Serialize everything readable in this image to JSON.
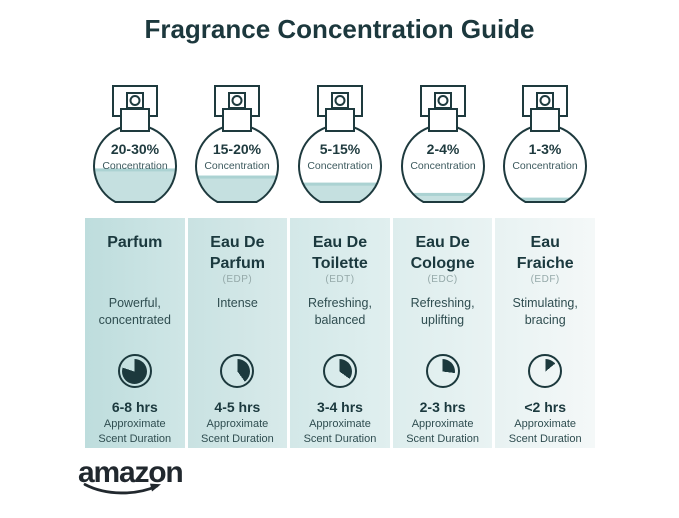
{
  "title": "Fragrance Concentration Guide",
  "colors": {
    "accent_dark": "#1c393d",
    "title_text": "#1c383d",
    "liquid": "#c5e0e0",
    "liquid_top_line": "#abd2d2",
    "logo_ink": "#21282e"
  },
  "bottles": [
    {
      "percent": "20-30%",
      "label": "Concentration",
      "fill_percent": 45
    },
    {
      "percent": "15-20%",
      "label": "Concentration",
      "fill_percent": 36
    },
    {
      "percent": "5-15%",
      "label": "Concentration",
      "fill_percent": 27
    },
    {
      "percent": "2-4%",
      "label": "Concentration",
      "fill_percent": 14
    },
    {
      "percent": "1-3%",
      "label": "Concentration",
      "fill_percent": 8
    }
  ],
  "columns": [
    {
      "name": "Parfum",
      "abbr": "",
      "desc": "Powerful, concentrated",
      "clock_percent": 80,
      "hours": "6-8 hrs",
      "duration_label": "Approximate Scent Duration"
    },
    {
      "name": "Eau De Parfum",
      "abbr": "(EDP)",
      "desc": "Intense",
      "clock_percent": 40,
      "hours": "4-5 hrs",
      "duration_label": "Approximate Scent Duration"
    },
    {
      "name": "Eau De Toilette",
      "abbr": "(EDT)",
      "desc": "Refreshing, balanced",
      "clock_percent": 35,
      "hours": "3-4 hrs",
      "duration_label": "Approximate Scent Duration"
    },
    {
      "name": "Eau De Cologne",
      "abbr": "(EDC)",
      "desc": "Refreshing, uplifting",
      "clock_percent": 27,
      "hours": "2-3 hrs",
      "duration_label": "Approximate Scent Duration"
    },
    {
      "name": "Eau Fraiche",
      "abbr": "(EDF)",
      "desc": "Stimulating, bracing",
      "clock_percent": 14,
      "hours": "<2 hrs",
      "duration_label": "Approximate Scent Duration"
    }
  ],
  "footer": {
    "brand": "amazon"
  }
}
